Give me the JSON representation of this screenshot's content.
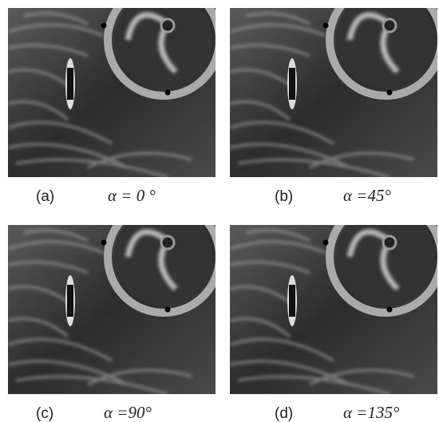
{
  "panels": [
    {
      "label": "(a)",
      "caption": "α = 0 °"
    },
    {
      "label": "(b)",
      "caption": "α =45°"
    },
    {
      "label": "(c)",
      "caption": "α =90°"
    },
    {
      "label": "(d)",
      "caption": "α =135°"
    }
  ]
}
